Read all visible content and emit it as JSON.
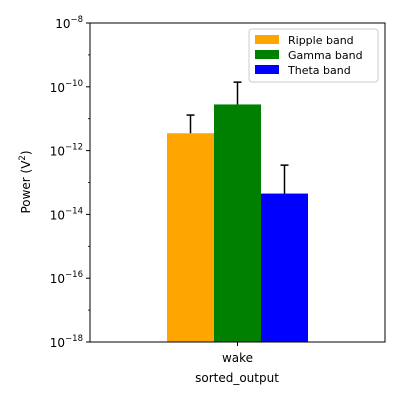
{
  "chart_data": {
    "type": "bar",
    "categories": [
      "wake"
    ],
    "series": [
      {
        "name": "Ripple band",
        "values": [
          3.5e-12
        ],
        "error_upper": [
          1.3e-11
        ],
        "color": "#ffa500"
      },
      {
        "name": "Gamma band",
        "values": [
          2.8e-11
        ],
        "error_upper": [
          1.4e-10
        ],
        "color": "#008000"
      },
      {
        "name": "Theta band",
        "values": [
          4.5e-14
        ],
        "error_upper": [
          3.5e-13
        ],
        "color": "#0000ff"
      }
    ],
    "xlabel": "sorted_output",
    "ylabel": "Power (V²)",
    "yscale": "log",
    "ylim": [
      1e-18,
      1e-08
    ],
    "yticks": [
      {
        "value": 1e-18,
        "base": "10",
        "exp": "−18"
      },
      {
        "value": 1e-16,
        "base": "10",
        "exp": "−16"
      },
      {
        "value": 1e-14,
        "base": "10",
        "exp": "−14"
      },
      {
        "value": 1e-12,
        "base": "10",
        "exp": "−12"
      },
      {
        "value": 1e-10,
        "base": "10",
        "exp": "−10"
      },
      {
        "value": 1e-08,
        "base": "10",
        "exp": "−8"
      }
    ],
    "grid": false,
    "legend_position": "top-right"
  }
}
